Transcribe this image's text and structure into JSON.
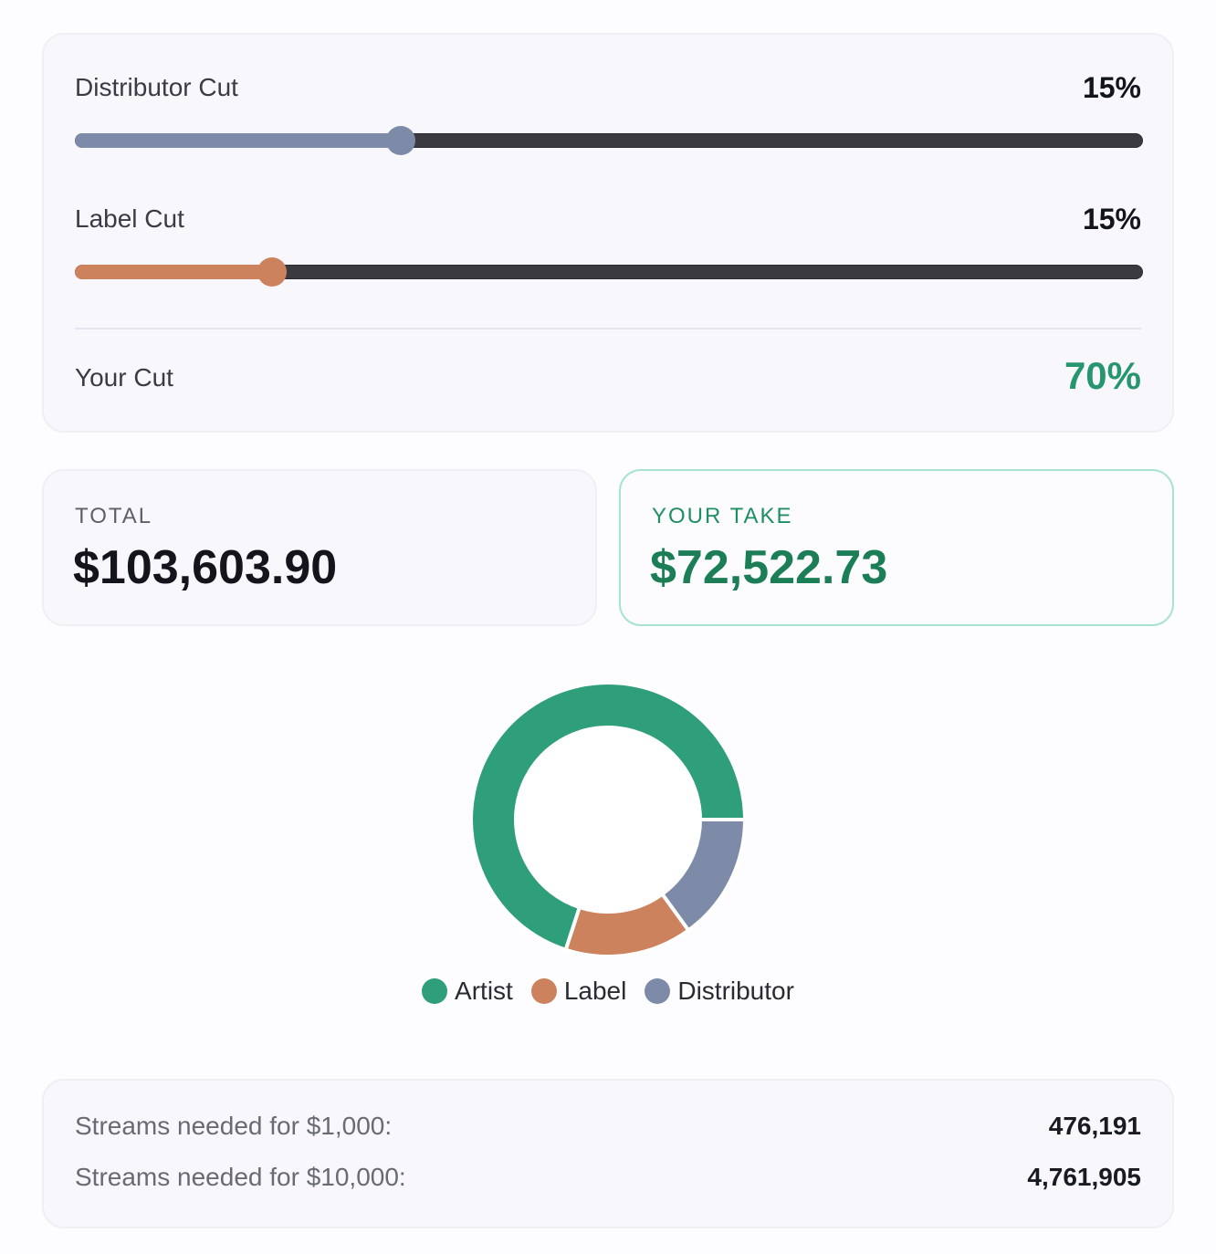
{
  "colors": {
    "artist": "#2f9e7a",
    "label": "#cc835d",
    "distributor": "#7d8ba8",
    "accent_green": "#27966e"
  },
  "controls": {
    "distributor": {
      "label": "Distributor Cut",
      "value_text": "15%",
      "slider_fraction": 0.305
    },
    "label_cut": {
      "label": "Label Cut",
      "value_text": "15%",
      "slider_fraction": 0.185
    },
    "your_cut": {
      "label": "Your Cut",
      "value_text": "70%"
    }
  },
  "stats": {
    "total": {
      "caption": "TOTAL",
      "value": "$103,603.90"
    },
    "your_take": {
      "caption": "YOUR TAKE",
      "value": "$72,522.73"
    }
  },
  "chart_data": {
    "type": "pie",
    "categories": [
      "Artist",
      "Label",
      "Distributor"
    ],
    "values": [
      70,
      15,
      15
    ],
    "legend_position": "bottom"
  },
  "legend": [
    "Artist",
    "Label",
    "Distributor"
  ],
  "streams": {
    "rows": [
      {
        "label": "Streams needed for $1,000:",
        "value": "476,191"
      },
      {
        "label": "Streams needed for $10,000:",
        "value": "4,761,905"
      }
    ]
  }
}
